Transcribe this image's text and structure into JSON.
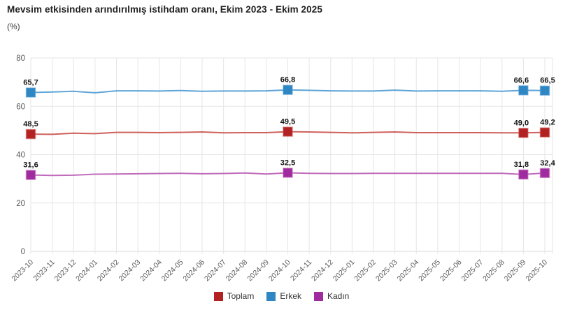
{
  "header": {
    "title": "Mevsim etkisinden arındırılmış istihdam oranı, Ekim 2023 - Ekim 2025",
    "unit_label": "(%)"
  },
  "chart_data": {
    "type": "line",
    "title": "Mevsim etkisinden arındırılmış istihdam oranı, Ekim 2023 - Ekim 2025",
    "ylabel": "(%)",
    "ylim": [
      0,
      80
    ],
    "yticks": [
      0,
      20,
      40,
      60,
      80
    ],
    "grid": true,
    "legend_position": "bottom",
    "marker_shape": "square",
    "x": [
      "2023-10",
      "2023-11",
      "2023-12",
      "2024-01",
      "2024-02",
      "2024-03",
      "2024-04",
      "2024-05",
      "2024-06",
      "2024-07",
      "2024-08",
      "2024-09",
      "2024-10",
      "2024-11",
      "2024-12",
      "2025-01",
      "2025-02",
      "2025-03",
      "2025-04",
      "2025-05",
      "2025-06",
      "2025-07",
      "2025-08",
      "2025-09",
      "2025-10"
    ],
    "series": [
      {
        "name": "Toplam",
        "marker_color": "#b22222",
        "line_color": "#c9504a",
        "values": [
          48.5,
          48.4,
          48.9,
          48.7,
          49.2,
          49.2,
          49.1,
          49.2,
          49.4,
          49.0,
          49.1,
          49.1,
          49.5,
          49.4,
          49.2,
          49.0,
          49.2,
          49.4,
          49.1,
          49.1,
          49.1,
          49.1,
          49.0,
          49.0,
          49.2
        ],
        "labeled_points": [
          {
            "index": 0,
            "label": "48,5"
          },
          {
            "index": 12,
            "label": "49,5"
          },
          {
            "index": 23,
            "label": "49,0"
          },
          {
            "index": 24,
            "label": "49,2"
          }
        ]
      },
      {
        "name": "Erkek",
        "marker_color": "#2e86c3",
        "line_color": "#4e9bd4",
        "values": [
          65.7,
          65.9,
          66.2,
          65.6,
          66.4,
          66.4,
          66.3,
          66.5,
          66.2,
          66.3,
          66.3,
          66.4,
          66.8,
          66.6,
          66.4,
          66.3,
          66.3,
          66.7,
          66.3,
          66.4,
          66.4,
          66.4,
          66.2,
          66.6,
          66.5
        ],
        "labeled_points": [
          {
            "index": 0,
            "label": "65,7"
          },
          {
            "index": 12,
            "label": "66,8"
          },
          {
            "index": 23,
            "label": "66,6"
          },
          {
            "index": 24,
            "label": "66,5"
          }
        ]
      },
      {
        "name": "Kadın",
        "marker_color": "#a02b9e",
        "line_color": "#b95cb4",
        "values": [
          31.6,
          31.4,
          31.5,
          31.9,
          32.0,
          32.1,
          32.2,
          32.3,
          32.1,
          32.2,
          32.4,
          32.0,
          32.5,
          32.3,
          32.2,
          32.2,
          32.3,
          32.3,
          32.3,
          32.3,
          32.3,
          32.3,
          32.3,
          31.8,
          32.4
        ],
        "labeled_points": [
          {
            "index": 0,
            "label": "31,6"
          },
          {
            "index": 12,
            "label": "32,5"
          },
          {
            "index": 23,
            "label": "31,8"
          },
          {
            "index": 24,
            "label": "32,4"
          }
        ]
      }
    ],
    "axis_colors": {
      "grid_line": "#e6e6e6",
      "baseline": "#d9d9d9",
      "tick_label": "#595959",
      "data_label": "#141414"
    }
  }
}
